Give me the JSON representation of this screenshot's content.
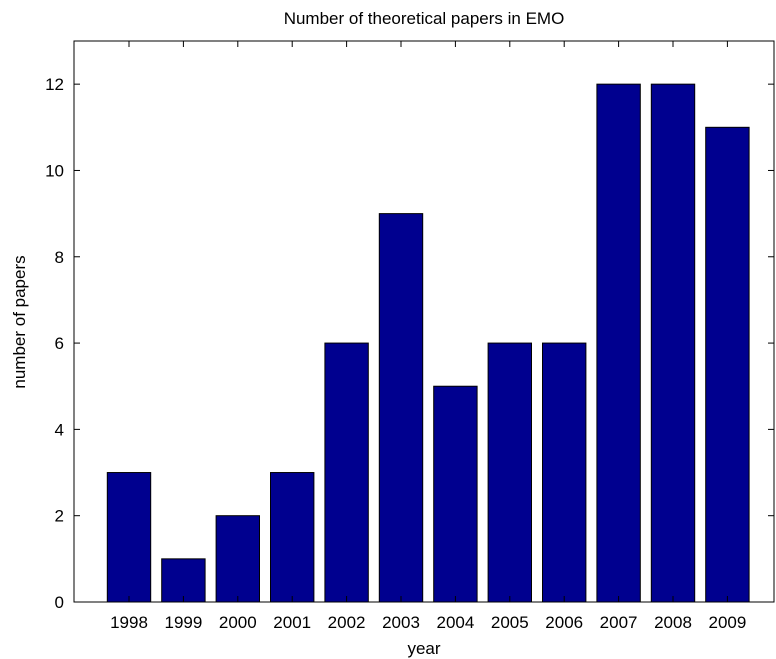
{
  "chart_data": {
    "type": "bar",
    "title": "Number of theoretical papers in EMO",
    "xlabel": "year",
    "ylabel": "number of papers",
    "categories": [
      "1998",
      "1999",
      "2000",
      "2001",
      "2002",
      "2003",
      "2004",
      "2005",
      "2006",
      "2007",
      "2008",
      "2009"
    ],
    "values": [
      3,
      1,
      2,
      3,
      6,
      9,
      5,
      6,
      6,
      12,
      12,
      11
    ],
    "ylim": [
      0,
      13
    ],
    "yticks": [
      0,
      2,
      4,
      6,
      8,
      10,
      12
    ],
    "grid": false,
    "legend": "none",
    "bar_color": "#00008f",
    "bar_edge_color": "#000000"
  }
}
